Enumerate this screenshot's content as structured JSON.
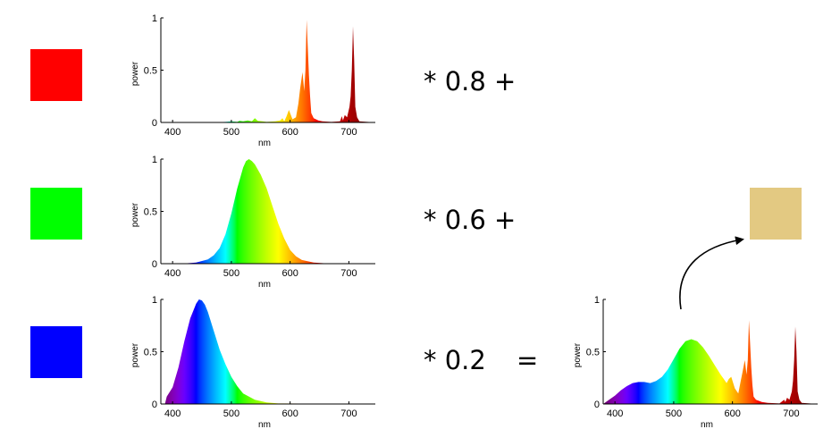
{
  "swatches": {
    "red": "#ff0000",
    "green": "#00ff00",
    "blue": "#0000ff",
    "result": "#e3c982"
  },
  "operators": {
    "red_factor": "* 0.8 +",
    "green_factor": "* 0.6 +",
    "blue_factor": "* 0.2",
    "equals": "="
  },
  "chart_data": [
    {
      "id": "red-spectrum",
      "type": "area",
      "xlabel": "nm",
      "ylabel": "power",
      "xlim": [
        380,
        745
      ],
      "ylim": [
        0,
        1
      ],
      "xticks": [
        "400",
        "500",
        "600",
        "700"
      ],
      "yticks": [
        "0",
        "0.5",
        "1"
      ],
      "fill": "spectral",
      "series": {
        "x": [
          380,
          470,
          490,
          500,
          510,
          514,
          520,
          528,
          535,
          540,
          545,
          553,
          560,
          575,
          583,
          587,
          590,
          594,
          598,
          604,
          610,
          614,
          617,
          621,
          624,
          626,
          628,
          630,
          632,
          634,
          636,
          640,
          648,
          655,
          670,
          685,
          688,
          690,
          693,
          697,
          701,
          703,
          705,
          707,
          709,
          711,
          714,
          718,
          745
        ],
        "y": [
          0,
          0,
          0.005,
          0.01,
          0.005,
          0.015,
          0.01,
          0.02,
          0.01,
          0.04,
          0.015,
          0.01,
          0.005,
          0.01,
          0.02,
          0.04,
          0.01,
          0.06,
          0.12,
          0.03,
          0.05,
          0.18,
          0.32,
          0.48,
          0.3,
          0.5,
          0.98,
          0.72,
          0.45,
          0.25,
          0.09,
          0.04,
          0.02,
          0.01,
          0.005,
          0.01,
          0.06,
          0.02,
          0.07,
          0.05,
          0.15,
          0.25,
          0.5,
          0.92,
          0.6,
          0.15,
          0.05,
          0.01,
          0
        ]
      }
    },
    {
      "id": "green-spectrum",
      "type": "area",
      "xlabel": "nm",
      "ylabel": "power",
      "xlim": [
        380,
        745
      ],
      "ylim": [
        0,
        1
      ],
      "xticks": [
        "400",
        "500",
        "600",
        "700"
      ],
      "yticks": [
        "0",
        "0.5",
        "1"
      ],
      "fill": "spectral",
      "series": {
        "x": [
          380,
          420,
          440,
          460,
          470,
          480,
          490,
          500,
          510,
          520,
          525,
          530,
          535,
          540,
          550,
          560,
          570,
          580,
          590,
          600,
          610,
          620,
          640,
          660,
          745
        ],
        "y": [
          0,
          0.002,
          0.01,
          0.04,
          0.08,
          0.15,
          0.28,
          0.48,
          0.72,
          0.92,
          0.98,
          1.0,
          0.98,
          0.95,
          0.85,
          0.72,
          0.55,
          0.38,
          0.24,
          0.13,
          0.07,
          0.035,
          0.01,
          0.003,
          0
        ]
      }
    },
    {
      "id": "blue-spectrum",
      "type": "area",
      "xlabel": "nm",
      "ylabel": "power",
      "xlim": [
        380,
        745
      ],
      "ylim": [
        0,
        1
      ],
      "xticks": [
        "400",
        "500",
        "600",
        "700"
      ],
      "yticks": [
        "0",
        "0.5",
        "1"
      ],
      "fill": "spectral",
      "series": {
        "x": [
          387,
          390,
          400,
          410,
          420,
          430,
          440,
          445,
          450,
          455,
          460,
          470,
          480,
          490,
          500,
          510,
          520,
          540,
          560,
          580,
          745
        ],
        "y": [
          0,
          0.07,
          0.16,
          0.35,
          0.6,
          0.82,
          0.96,
          1.0,
          0.99,
          0.95,
          0.88,
          0.7,
          0.52,
          0.38,
          0.26,
          0.17,
          0.1,
          0.04,
          0.015,
          0.005,
          0
        ]
      }
    },
    {
      "id": "combined-spectrum",
      "type": "area",
      "xlabel": "nm",
      "ylabel": "power",
      "xlim": [
        380,
        745
      ],
      "ylim": [
        0,
        1
      ],
      "xticks": [
        "400",
        "500",
        "600",
        "700"
      ],
      "yticks": [
        "0",
        "0.5",
        "1"
      ],
      "fill": "spectral",
      "series": {
        "x": [
          380,
          390,
          400,
          410,
          420,
          430,
          440,
          450,
          460,
          470,
          480,
          490,
          500,
          510,
          520,
          530,
          540,
          550,
          560,
          570,
          580,
          585,
          590,
          594,
          598,
          604,
          610,
          614,
          617,
          621,
          624,
          626,
          628,
          630,
          632,
          634,
          636,
          640,
          650,
          660,
          680,
          688,
          690,
          693,
          697,
          701,
          703,
          705,
          707,
          709,
          711,
          714,
          718,
          745
        ],
        "y": [
          0,
          0.04,
          0.08,
          0.13,
          0.17,
          0.2,
          0.21,
          0.21,
          0.2,
          0.22,
          0.26,
          0.33,
          0.43,
          0.53,
          0.6,
          0.62,
          0.6,
          0.54,
          0.46,
          0.37,
          0.28,
          0.24,
          0.2,
          0.24,
          0.26,
          0.15,
          0.1,
          0.22,
          0.3,
          0.42,
          0.28,
          0.42,
          0.8,
          0.58,
          0.35,
          0.18,
          0.07,
          0.04,
          0.02,
          0.01,
          0.005,
          0.04,
          0.02,
          0.06,
          0.04,
          0.12,
          0.22,
          0.42,
          0.74,
          0.5,
          0.12,
          0.04,
          0.01,
          0
        ]
      }
    }
  ]
}
